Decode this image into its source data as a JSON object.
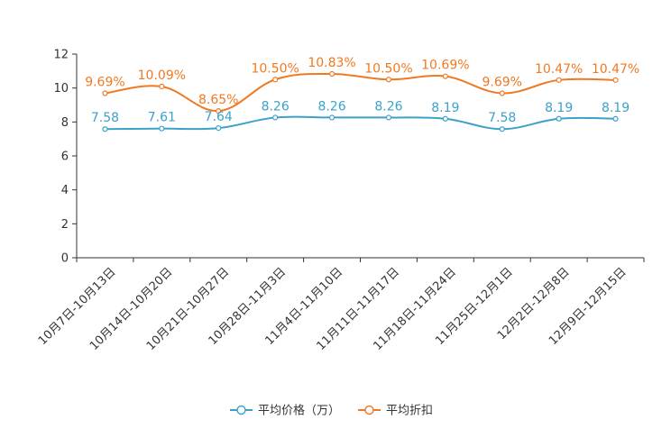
{
  "chart_data": {
    "type": "line",
    "title": "",
    "xlabel": "",
    "ylabel": "",
    "ylim": [
      0,
      12
    ],
    "yticks": [
      0,
      2,
      4,
      6,
      8,
      10,
      12
    ],
    "grid": false,
    "legend_position": "bottom",
    "categories": [
      "10月7日-10月13日",
      "10月14日-10月20日",
      "10月21日-10月27日",
      "10月28日-11月3日",
      "11月4日-11月10日",
      "11月11日-11月17日",
      "11月18日-11月24日",
      "11月25日-12月1日",
      "12月2日-12月8日",
      "12月9日-12月15日"
    ],
    "series": [
      {
        "name": "平均价格（万）",
        "color": "#3ba1c9",
        "values": [
          7.58,
          7.61,
          7.64,
          8.26,
          8.26,
          8.26,
          8.19,
          7.58,
          8.19,
          8.19
        ],
        "labels": [
          "7.58",
          "7.61",
          "7.64",
          "8.26",
          "8.26",
          "8.26",
          "8.19",
          "7.58",
          "8.19",
          "8.19"
        ]
      },
      {
        "name": "平均折扣",
        "color": "#f07921",
        "values": [
          9.69,
          10.09,
          8.65,
          10.5,
          10.83,
          10.5,
          10.69,
          9.69,
          10.47,
          10.47
        ],
        "labels": [
          "9.69%",
          "10.09%",
          "8.65%",
          "10.50%",
          "10.83%",
          "10.50%",
          "10.69%",
          "9.69%",
          "10.47%",
          "10.47%"
        ]
      }
    ]
  }
}
